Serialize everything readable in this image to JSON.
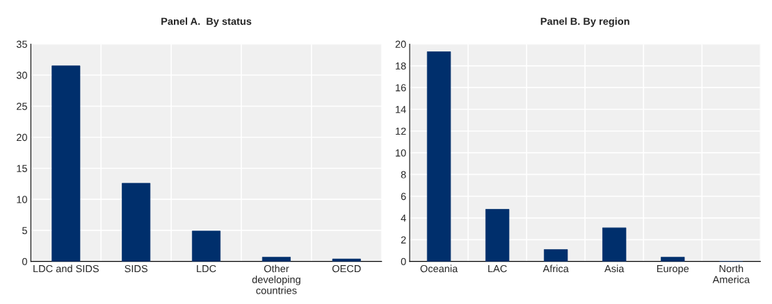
{
  "chart_data": [
    {
      "type": "bar",
      "title": "Panel A.  By status",
      "categories": [
        "LDC and SIDS",
        "SIDS",
        "LDC",
        "Other\ndeveloping\ncountries",
        "OECD"
      ],
      "values": [
        31.5,
        12.6,
        4.9,
        0.7,
        0.4
      ],
      "color": "#002f6c",
      "ylim": [
        0,
        35
      ],
      "yticks": [
        0,
        5,
        10,
        15,
        20,
        25,
        30,
        35
      ],
      "grid": true
    },
    {
      "type": "bar",
      "title": "Panel B. By region",
      "categories": [
        "Oceania",
        "LAC",
        "Africa",
        "Asia",
        "Europe",
        "North\nAmerica"
      ],
      "values": [
        19.3,
        4.8,
        1.1,
        3.1,
        0.4,
        0
      ],
      "color": "#002f6c",
      "ylim": [
        0,
        20
      ],
      "yticks": [
        0,
        2,
        4,
        6,
        8,
        10,
        12,
        14,
        16,
        18,
        20
      ],
      "grid": true
    }
  ]
}
